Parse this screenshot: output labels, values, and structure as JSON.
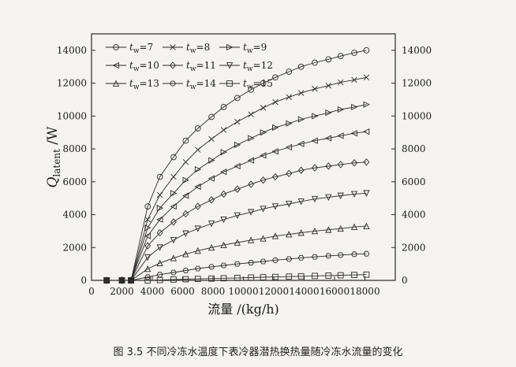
{
  "caption": "图 3.5 不同冷冻水温度下表冷器潜热换热量随冷冻水流量的变化",
  "chart_data": {
    "type": "line",
    "xlabel": "流量 /(kg/h)",
    "ylabel_main": "Q",
    "ylabel_sub": "latent",
    "ylabel_unit": "/W",
    "xlim": [
      0,
      20000
    ],
    "ylim": [
      0,
      15000
    ],
    "xticks": [
      0,
      2000,
      4000,
      6000,
      8000,
      10000,
      12000,
      14000,
      16000,
      18000
    ],
    "yticks": [
      0,
      2000,
      4000,
      6000,
      8000,
      10000,
      12000,
      14000
    ],
    "legend_location": "top-left",
    "x": [
      1000,
      2000,
      2600,
      3700,
      4500,
      5400,
      6200,
      7000,
      7900,
      8700,
      9600,
      10500,
      11300,
      12100,
      13000,
      13800,
      14700,
      15600,
      16400,
      17300,
      18100
    ],
    "series": [
      {
        "name": "tw=7",
        "marker": "circle",
        "values": [
          0,
          0,
          0,
          4500,
          6300,
          7500,
          8500,
          9250,
          9950,
          10550,
          11100,
          11600,
          12000,
          12350,
          12700,
          13000,
          13250,
          13450,
          13650,
          13850,
          14000
        ]
      },
      {
        "name": "tw=8",
        "marker": "x",
        "values": [
          0,
          0,
          0,
          3700,
          5200,
          6300,
          7200,
          7950,
          8600,
          9150,
          9650,
          10100,
          10500,
          10850,
          11150,
          11400,
          11650,
          11850,
          12050,
          12200,
          12350
        ]
      },
      {
        "name": "tw=9",
        "marker": "triangle-right",
        "values": [
          0,
          0,
          0,
          3200,
          4400,
          5300,
          6100,
          6750,
          7300,
          7800,
          8250,
          8650,
          9000,
          9300,
          9550,
          9800,
          10000,
          10200,
          10400,
          10550,
          10700
        ]
      },
      {
        "name": "tw=10",
        "marker": "triangle-left",
        "values": [
          0,
          0,
          0,
          2700,
          3700,
          4500,
          5150,
          5700,
          6200,
          6600,
          6950,
          7300,
          7600,
          7850,
          8100,
          8300,
          8500,
          8650,
          8800,
          8950,
          9050
        ]
      },
      {
        "name": "tw=11",
        "marker": "diamond",
        "values": [
          0,
          0,
          0,
          2100,
          2900,
          3550,
          4050,
          4500,
          4900,
          5250,
          5550,
          5850,
          6100,
          6300,
          6500,
          6700,
          6850,
          6950,
          7050,
          7150,
          7200
        ]
      },
      {
        "name": "tw=12",
        "marker": "triangle-down",
        "values": [
          0,
          0,
          0,
          1400,
          2000,
          2450,
          2850,
          3150,
          3450,
          3700,
          3950,
          4150,
          4350,
          4500,
          4650,
          4800,
          4950,
          5050,
          5150,
          5250,
          5300
        ]
      },
      {
        "name": "tw=13",
        "marker": "triangle-up",
        "values": [
          0,
          0,
          0,
          700,
          1050,
          1350,
          1600,
          1800,
          2000,
          2150,
          2300,
          2450,
          2550,
          2700,
          2800,
          2900,
          3000,
          3080,
          3150,
          3250,
          3300
        ]
      },
      {
        "name": "tw=14",
        "marker": "hexagon",
        "values": [
          0,
          0,
          0,
          200,
          350,
          480,
          600,
          720,
          820,
          910,
          1000,
          1080,
          1150,
          1230,
          1300,
          1370,
          1430,
          1490,
          1540,
          1590,
          1620
        ]
      },
      {
        "name": "tw=15",
        "marker": "square",
        "values": [
          0,
          0,
          0,
          0,
          20,
          50,
          70,
          90,
          110,
          130,
          150,
          170,
          190,
          210,
          230,
          250,
          270,
          290,
          310,
          330,
          350
        ]
      }
    ]
  }
}
